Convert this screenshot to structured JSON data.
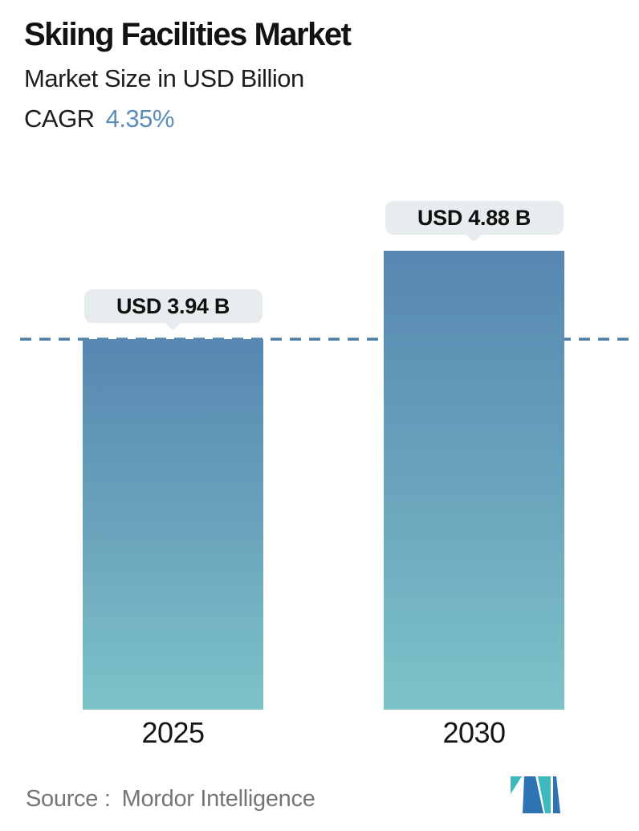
{
  "header": {
    "title": "Skiing Facilities Market",
    "subtitle": "Market Size in USD Billion",
    "cagr_label": "CAGR",
    "cagr_value": "4.35%"
  },
  "chart_data": {
    "type": "bar",
    "title": "Skiing Facilities Market",
    "subtitle": "Market Size in USD Billion",
    "unit": "USD Billion",
    "cagr": "4.35%",
    "categories": [
      "2025",
      "2030"
    ],
    "values": [
      3.94,
      4.88
    ],
    "value_labels": [
      "USD 3.94 B",
      "USD 4.88 B"
    ],
    "ylim": [
      0,
      5.5
    ],
    "grid": false,
    "legend": false,
    "reference_line": {
      "value": 3.94,
      "style": "dashed"
    },
    "colors": {
      "bar_gradient_top": "#5787b1",
      "bar_gradient_bottom": "#7dc3c9",
      "reference_line": "#4d7ea6",
      "callout_background": "#e7edee",
      "cagr_accent": "#5b8cba"
    }
  },
  "footer": {
    "source_label": "Source :",
    "source_value": "Mordor Intelligence",
    "logo_name": "mordor-intelligence-logo"
  }
}
